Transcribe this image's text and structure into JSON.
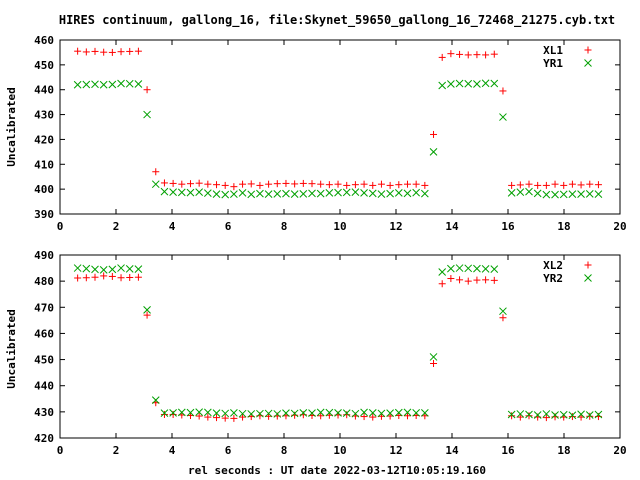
{
  "chart_data": [
    {
      "type": "scatter",
      "title": "HIRES continuum, gallong_16, file:Skynet_59650_gallong_16_72468_21275.cyb.txt",
      "xlabel": "",
      "ylabel": "Uncalibrated",
      "xlim": [
        0,
        20
      ],
      "ylim": [
        390,
        460
      ],
      "xticks": [
        "0",
        "2",
        "4",
        "6",
        "8",
        "10",
        "12",
        "14",
        "16",
        "18",
        "20"
      ],
      "yticks": [
        "390",
        "400",
        "410",
        "420",
        "430",
        "440",
        "450",
        "460"
      ],
      "legend_position": "top-right",
      "series": [
        {
          "name": "XL1",
          "marker": "plus",
          "color": "#ff0000",
          "x": [
            0.63,
            0.94,
            1.25,
            1.56,
            1.87,
            2.18,
            2.49,
            2.8,
            3.11,
            3.42,
            3.73,
            4.04,
            4.35,
            4.66,
            4.97,
            5.28,
            5.59,
            5.9,
            6.21,
            6.52,
            6.83,
            7.14,
            7.45,
            7.76,
            8.07,
            8.38,
            8.69,
            9.0,
            9.31,
            9.62,
            9.93,
            10.24,
            10.55,
            10.86,
            11.17,
            11.48,
            11.79,
            12.1,
            12.41,
            12.72,
            13.03,
            13.34,
            13.65,
            13.96,
            14.27,
            14.58,
            14.89,
            15.2,
            15.51,
            15.82,
            16.13,
            16.44,
            16.75,
            17.06,
            17.37,
            17.68,
            17.99,
            18.3,
            18.61,
            18.92,
            19.23
          ],
          "y": [
            455.5,
            455.2,
            455.4,
            455.1,
            455.0,
            455.3,
            455.4,
            455.5,
            440.0,
            407.0,
            402.5,
            402.3,
            402.0,
            402.2,
            402.4,
            402.0,
            401.8,
            401.5,
            401.0,
            402.0,
            402.1,
            401.5,
            402.0,
            402.2,
            402.3,
            402.1,
            402.3,
            402.2,
            402.0,
            401.8,
            402.0,
            401.5,
            401.8,
            402.0,
            401.5,
            402.0,
            401.5,
            401.8,
            402.0,
            402.0,
            401.5,
            422.0,
            453.0,
            454.5,
            454.2,
            454.0,
            454.1,
            454.0,
            454.3,
            439.5,
            401.5,
            401.7,
            402.0,
            401.5,
            401.5,
            402.0,
            401.5,
            402.0,
            401.7,
            402.0,
            401.8
          ]
        },
        {
          "name": "YR1",
          "marker": "cross",
          "color": "#00a000",
          "x": [
            0.63,
            0.94,
            1.25,
            1.56,
            1.87,
            2.18,
            2.49,
            2.8,
            3.11,
            3.42,
            3.73,
            4.04,
            4.35,
            4.66,
            4.97,
            5.28,
            5.59,
            5.9,
            6.21,
            6.52,
            6.83,
            7.14,
            7.45,
            7.76,
            8.07,
            8.38,
            8.69,
            9.0,
            9.31,
            9.62,
            9.93,
            10.24,
            10.55,
            10.86,
            11.17,
            11.48,
            11.79,
            12.1,
            12.41,
            12.72,
            13.03,
            13.34,
            13.65,
            13.96,
            14.27,
            14.58,
            14.89,
            15.2,
            15.51,
            15.82,
            16.13,
            16.44,
            16.75,
            17.06,
            17.37,
            17.68,
            17.99,
            18.3,
            18.61,
            18.92,
            19.23
          ],
          "y": [
            442.0,
            442.1,
            442.2,
            442.0,
            442.1,
            442.5,
            442.4,
            442.3,
            430.0,
            402.0,
            399.0,
            398.8,
            398.7,
            398.6,
            398.8,
            398.4,
            398.0,
            397.8,
            398.0,
            398.5,
            397.9,
            398.2,
            398.0,
            398.1,
            398.2,
            398.0,
            398.1,
            398.3,
            398.2,
            398.5,
            398.6,
            398.7,
            398.8,
            398.5,
            398.3,
            398.0,
            398.2,
            398.5,
            398.3,
            398.6,
            398.2,
            415.0,
            441.7,
            442.3,
            442.5,
            442.4,
            442.3,
            442.6,
            442.5,
            429.0,
            398.5,
            398.8,
            399.0,
            398.3,
            397.8,
            397.8,
            397.9,
            398.0,
            398.0,
            398.1,
            398.0
          ]
        }
      ]
    },
    {
      "type": "scatter",
      "title": "",
      "xlabel": "rel seconds : UT date 2022-03-12T10:05:19.160",
      "ylabel": "Uncalibrated",
      "xlim": [
        0,
        20
      ],
      "ylim": [
        420,
        490
      ],
      "xticks": [
        "0",
        "2",
        "4",
        "6",
        "8",
        "10",
        "12",
        "14",
        "16",
        "18",
        "20"
      ],
      "yticks": [
        "420",
        "430",
        "440",
        "450",
        "460",
        "470",
        "480",
        "490"
      ],
      "legend_position": "top-right",
      "series": [
        {
          "name": "XL2",
          "marker": "plus",
          "color": "#ff0000",
          "x": [
            0.63,
            0.94,
            1.25,
            1.56,
            1.87,
            2.18,
            2.49,
            2.8,
            3.11,
            3.42,
            3.73,
            4.04,
            4.35,
            4.66,
            4.97,
            5.28,
            5.59,
            5.9,
            6.21,
            6.52,
            6.83,
            7.14,
            7.45,
            7.76,
            8.07,
            8.38,
            8.69,
            9.0,
            9.31,
            9.62,
            9.93,
            10.24,
            10.55,
            10.86,
            11.17,
            11.48,
            11.79,
            12.1,
            12.41,
            12.72,
            13.03,
            13.34,
            13.65,
            13.96,
            14.27,
            14.58,
            14.89,
            15.2,
            15.51,
            15.82,
            16.13,
            16.44,
            16.75,
            17.06,
            17.37,
            17.68,
            17.99,
            18.3,
            18.61,
            18.92,
            19.23
          ],
          "y": [
            481.2,
            481.3,
            481.5,
            482.0,
            481.8,
            481.3,
            481.4,
            481.5,
            467.0,
            433.5,
            429.0,
            429.0,
            428.8,
            428.6,
            428.4,
            428.0,
            427.8,
            427.6,
            427.5,
            428.0,
            428.2,
            428.5,
            428.3,
            428.4,
            428.5,
            428.7,
            428.9,
            428.6,
            428.5,
            428.7,
            428.8,
            428.9,
            428.4,
            428.2,
            428.0,
            428.3,
            428.4,
            428.6,
            428.5,
            428.6,
            428.5,
            448.5,
            479.0,
            481.0,
            480.5,
            480.0,
            480.4,
            480.5,
            480.3,
            466.0,
            428.5,
            428.0,
            428.5,
            428.0,
            427.8,
            428.1,
            428.0,
            428.2,
            428.0,
            428.3,
            428.2
          ]
        },
        {
          "name": "YR2",
          "marker": "cross",
          "color": "#00a000",
          "x": [
            0.63,
            0.94,
            1.25,
            1.56,
            1.87,
            2.18,
            2.49,
            2.8,
            3.11,
            3.42,
            3.73,
            4.04,
            4.35,
            4.66,
            4.97,
            5.28,
            5.59,
            5.9,
            6.21,
            6.52,
            6.83,
            7.14,
            7.45,
            7.76,
            8.07,
            8.38,
            8.69,
            9.0,
            9.31,
            9.62,
            9.93,
            10.24,
            10.55,
            10.86,
            11.17,
            11.48,
            11.79,
            12.1,
            12.41,
            12.72,
            13.03,
            13.34,
            13.65,
            13.96,
            14.27,
            14.58,
            14.89,
            15.2,
            15.51,
            15.82,
            16.13,
            16.44,
            16.75,
            17.06,
            17.37,
            17.68,
            17.99,
            18.3,
            18.61,
            18.92,
            19.23
          ],
          "y": [
            485.0,
            484.8,
            484.5,
            484.3,
            484.5,
            485.0,
            484.7,
            484.6,
            469.0,
            434.5,
            429.5,
            429.6,
            429.8,
            429.7,
            429.9,
            429.8,
            429.5,
            429.4,
            429.6,
            429.3,
            429.2,
            429.3,
            429.4,
            429.2,
            429.5,
            429.4,
            429.6,
            429.5,
            429.8,
            429.7,
            429.6,
            429.5,
            429.3,
            429.8,
            429.6,
            429.4,
            429.5,
            429.7,
            429.8,
            429.6,
            429.6,
            451.0,
            483.5,
            484.8,
            485.0,
            484.9,
            484.8,
            484.7,
            484.6,
            468.5,
            429.0,
            429.2,
            429.0,
            428.8,
            429.2,
            428.8,
            428.9,
            428.7,
            429.1,
            428.8,
            429.0
          ]
        }
      ]
    }
  ]
}
